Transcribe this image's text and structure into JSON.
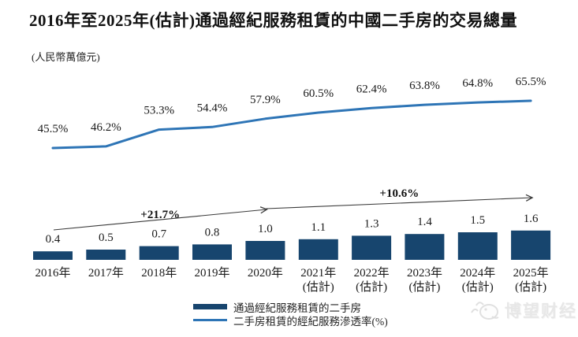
{
  "header": {
    "title": "2016年至2025年(估計)通過經紀服務租賃的中國二手房的交易總量",
    "unit_label": "(人民幣萬億元)"
  },
  "chart_data": {
    "type": "bar",
    "overlay": "line",
    "title": "2016年至2025年(估計)通過經紀服務租賃的中國二手房的交易總量",
    "unit": "人民幣萬億元",
    "grid": false,
    "value_labels_shown": true,
    "legend_position": "bottom-center",
    "categories": [
      [
        "2016年"
      ],
      [
        "2017年"
      ],
      [
        "2018年"
      ],
      [
        "2019年"
      ],
      [
        "2020年"
      ],
      [
        "2021年",
        "(估計)"
      ],
      [
        "2022年",
        "(估計)"
      ],
      [
        "2023年",
        "(估計)"
      ],
      [
        "2024年",
        "(估計)"
      ],
      [
        "2025年",
        "(估計)"
      ]
    ],
    "series": [
      {
        "name": "通過經紀服務租賃的二手房",
        "type": "bar",
        "unit": "人民幣萬億元",
        "color": "#17456e",
        "values": [
          0.4,
          0.5,
          0.7,
          0.8,
          1.0,
          1.1,
          1.3,
          1.4,
          1.5,
          1.6
        ]
      },
      {
        "name": "二手房租賃的經紀服務滲透率(%)",
        "type": "line",
        "unit": "%",
        "color": "#2e75b6",
        "values": [
          45.5,
          46.2,
          53.3,
          54.4,
          57.9,
          60.5,
          62.4,
          63.8,
          64.8,
          65.5
        ]
      }
    ],
    "annotations": [
      {
        "label": "+21.7%",
        "from_category_index": 0,
        "to_category_index": 4
      },
      {
        "label": "+10.6%",
        "from_category_index": 4,
        "to_category_index": 9
      }
    ]
  },
  "legend": {
    "items": [
      {
        "swatch": "bar",
        "label": "通過經紀服務租賃的二手房"
      },
      {
        "swatch": "line",
        "label": "二手房租賃的經紀服務滲透率(%)"
      }
    ]
  },
  "watermark": {
    "text": "博望财经",
    "icon": "mascot-doodle-icon"
  }
}
